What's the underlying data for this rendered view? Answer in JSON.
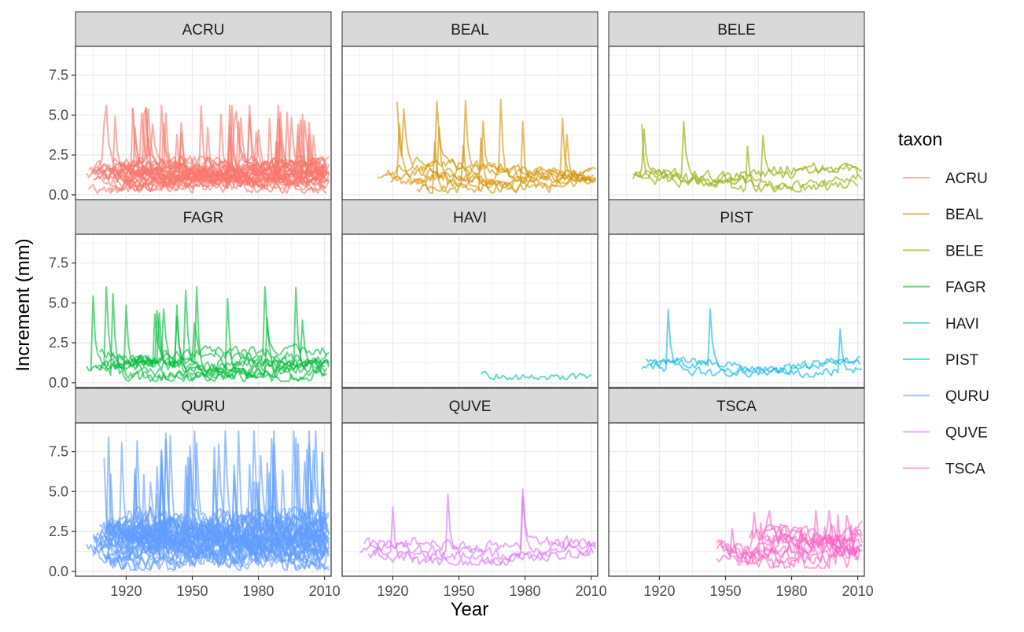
{
  "chart_data": {
    "type": "line",
    "xlabel": "Year",
    "ylabel": "Increment (mm)",
    "xlim": [
      1897,
      2013
    ],
    "ylim": [
      -0.3,
      9.3
    ],
    "x_ticks": [
      1920,
      1950,
      1980,
      2010
    ],
    "y_ticks": [
      0.0,
      2.5,
      5.0,
      7.5
    ],
    "y_tick_labels": [
      "0.0",
      "2.5",
      "5.0",
      "7.5"
    ],
    "grid": true,
    "facet_layout": "3x3",
    "legend": {
      "title": "taxon",
      "position": "right"
    },
    "series": [
      {
        "name": "ACRU",
        "color": "#F8766D",
        "x_range": [
          1902,
          2012
        ],
        "typical": 1.2,
        "range": [
          0.1,
          5.6
        ],
        "lines": 30
      },
      {
        "name": "BEAL",
        "color": "#D39200",
        "x_range": [
          1913,
          2012
        ],
        "typical": 1.1,
        "range": [
          0.1,
          6.0
        ],
        "lines": 8
      },
      {
        "name": "BELE",
        "color": "#93AA00",
        "x_range": [
          1908,
          2012
        ],
        "typical": 1.1,
        "range": [
          0.2,
          4.6
        ],
        "lines": 4
      },
      {
        "name": "FAGR",
        "color": "#00BA38",
        "x_range": [
          1902,
          2012
        ],
        "typical": 1.2,
        "range": [
          0.1,
          6.0
        ],
        "lines": 10
      },
      {
        "name": "HAVI",
        "color": "#00C19F",
        "x_range": [
          1960,
          2012
        ],
        "typical": 0.8,
        "range": [
          0.2,
          1.6
        ],
        "lines": 1
      },
      {
        "name": "PIST",
        "color": "#00B9E3",
        "x_range": [
          1912,
          2012
        ],
        "typical": 0.9,
        "range": [
          0.1,
          5.1
        ],
        "lines": 3
      },
      {
        "name": "QURU",
        "color": "#619CFF",
        "x_range": [
          1902,
          2012
        ],
        "typical": 2.0,
        "range": [
          0.1,
          8.8
        ],
        "lines": 40
      },
      {
        "name": "QUVE",
        "color": "#DB72FB",
        "x_range": [
          1905,
          2012
        ],
        "typical": 1.3,
        "range": [
          0.4,
          5.3
        ],
        "lines": 4
      },
      {
        "name": "TSCA",
        "color": "#FF61C3",
        "x_range": [
          1946,
          2012
        ],
        "typical": 1.5,
        "range": [
          0.2,
          3.8
        ],
        "lines": 12
      }
    ]
  }
}
